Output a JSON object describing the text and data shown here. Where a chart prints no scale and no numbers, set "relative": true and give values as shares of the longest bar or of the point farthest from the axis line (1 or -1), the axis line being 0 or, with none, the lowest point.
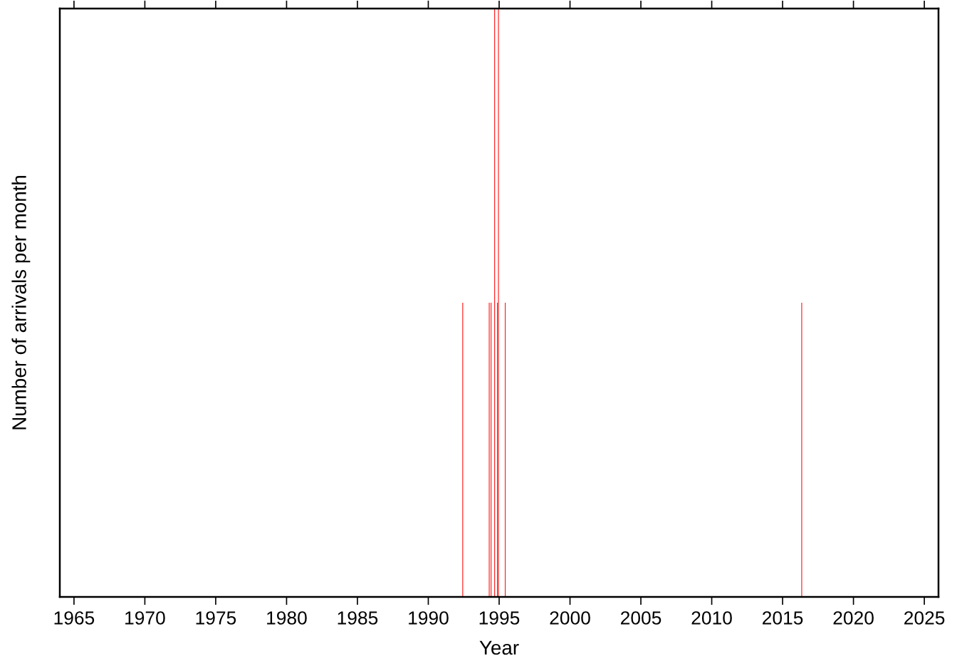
{
  "chart_data": {
    "type": "bar",
    "xlabel": "Year",
    "ylabel": "Number of arrivals per month",
    "x": [
      1992.43,
      1994.3,
      1994.43,
      1994.68,
      1994.88,
      1994.95,
      1995.43,
      2016.35
    ],
    "series": [
      {
        "color": "#ff2020",
        "values": [
          0.5,
          0.5,
          0.5,
          1,
          0.5,
          1,
          0.5,
          0.5
        ]
      }
    ],
    "relative": true,
    "xlim": [
      1964,
      2026
    ],
    "xticks": [
      1965,
      1970,
      1975,
      1980,
      1985,
      1990,
      1995,
      2000,
      2005,
      2010,
      2015,
      2020,
      2025
    ],
    "grid": false
  }
}
